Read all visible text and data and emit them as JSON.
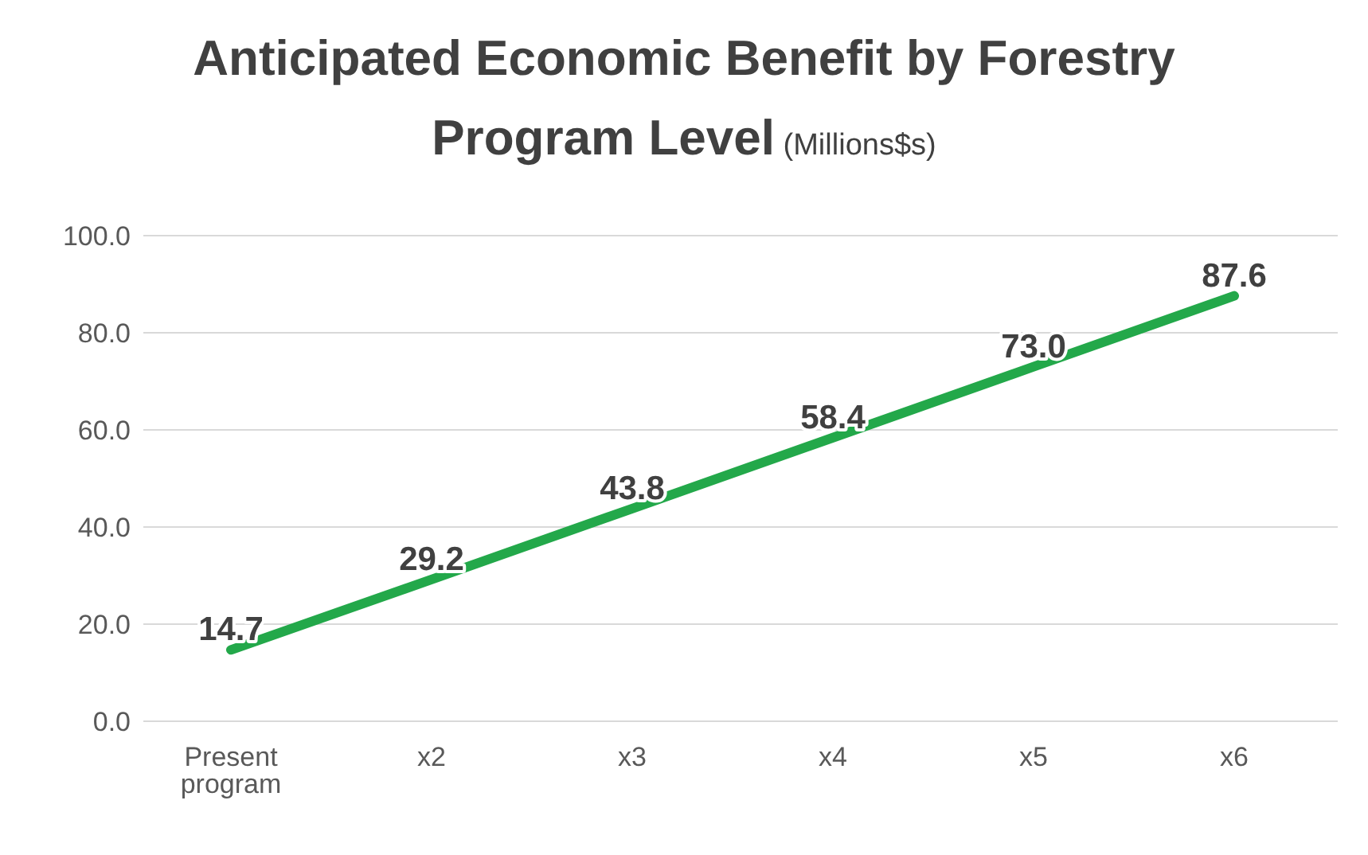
{
  "chart_data": {
    "type": "line",
    "title": "Anticipated Economic Benefit by Forestry Program Level",
    "subtitle": "(Millions$s)",
    "categories": [
      "Present program",
      "x2",
      "x3",
      "x4",
      "x5",
      "x6"
    ],
    "series": [
      {
        "color": "#23a84a",
        "values": [
          14.7,
          29.2,
          43.8,
          58.4,
          73.0,
          87.6
        ],
        "value_labels": [
          "14.7",
          "29.2",
          "43.8",
          "58.4",
          "73.0",
          "87.6"
        ]
      }
    ],
    "ylim": [
      0,
      100
    ],
    "yticks": [
      {
        "value": 0,
        "label": "0.0"
      },
      {
        "value": 20,
        "label": "20.0"
      },
      {
        "value": 40,
        "label": "40.0"
      },
      {
        "value": 60,
        "label": "60.0"
      },
      {
        "value": 80,
        "label": "80.0"
      },
      {
        "value": 100,
        "label": "100.0"
      }
    ],
    "grid": "y",
    "legend": false,
    "marker": "none",
    "line_style": "solid"
  }
}
